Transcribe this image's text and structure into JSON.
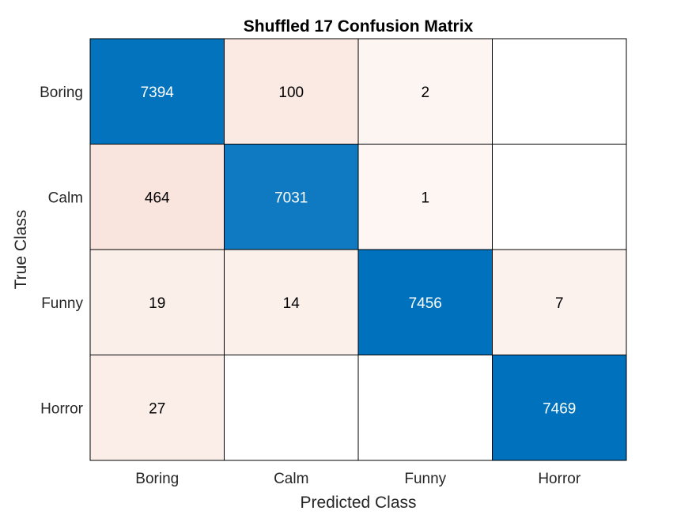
{
  "chart_data": {
    "type": "heatmap",
    "title": "Shuffled 17 Confusion Matrix",
    "xlabel": "Predicted Class",
    "ylabel": "True Class",
    "x_categories": [
      "Boring",
      "Calm",
      "Funny",
      "Horror"
    ],
    "y_categories": [
      "Boring",
      "Calm",
      "Funny",
      "Horror"
    ],
    "values": [
      [
        7394,
        100,
        2,
        0
      ],
      [
        464,
        7031,
        1,
        0
      ],
      [
        19,
        14,
        7456,
        7
      ],
      [
        27,
        0,
        0,
        7469
      ]
    ],
    "zero_cells_labeled": false,
    "diagonal_color": "#0072BD",
    "off_diagonal_color": "#D95319",
    "empty_color": "#FFFFFF",
    "grid_color": "#000000"
  }
}
